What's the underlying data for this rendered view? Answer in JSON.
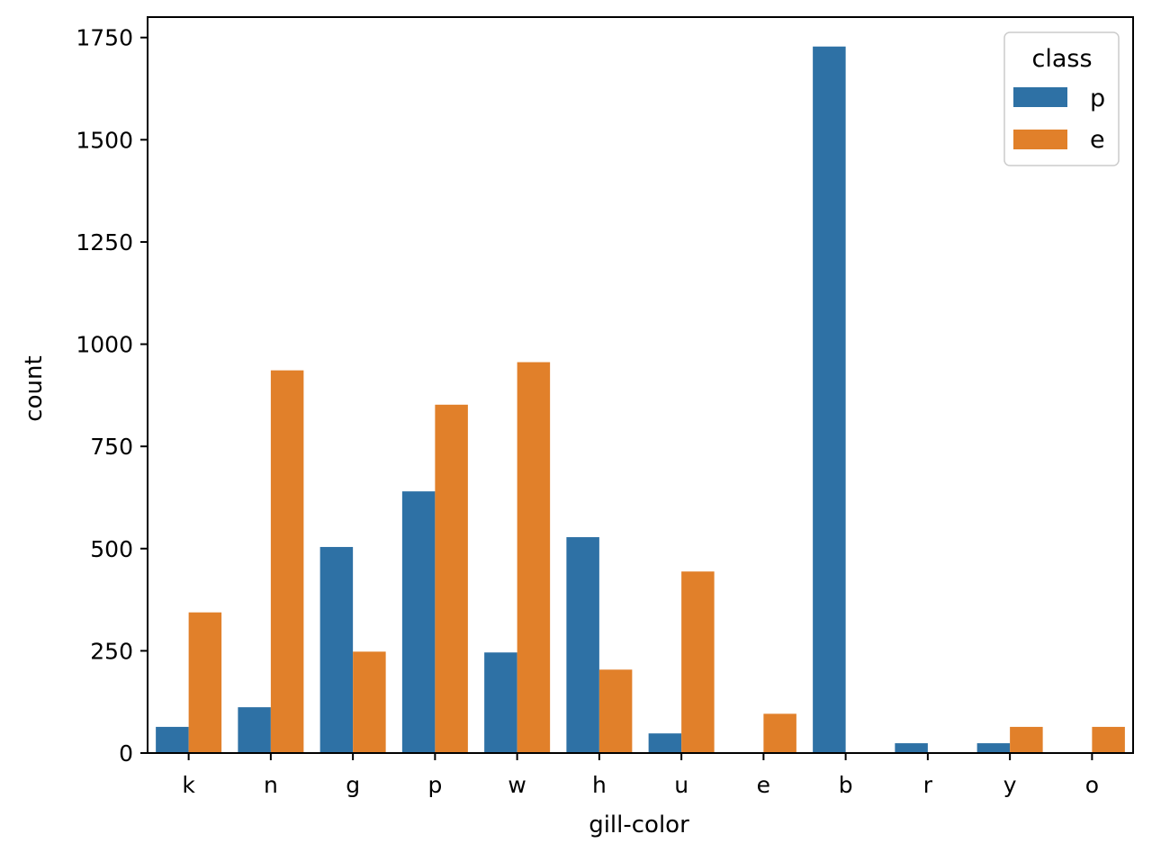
{
  "chart_data": {
    "type": "bar",
    "categories": [
      "k",
      "n",
      "g",
      "p",
      "w",
      "h",
      "u",
      "e",
      "b",
      "r",
      "y",
      "o"
    ],
    "series": [
      {
        "name": "p",
        "color": "#2e71a5",
        "values": [
          64,
          112,
          504,
          640,
          246,
          528,
          48,
          0,
          1728,
          24,
          24,
          0
        ]
      },
      {
        "name": "e",
        "color": "#e1802a",
        "values": [
          344,
          936,
          248,
          852,
          956,
          204,
          444,
          96,
          0,
          0,
          64,
          64
        ]
      }
    ],
    "title": "",
    "xlabel": "gill-color",
    "ylabel": "count",
    "ylim": [
      0,
      1800
    ],
    "yticks": [
      0,
      250,
      500,
      750,
      1000,
      1250,
      1500,
      1750
    ],
    "grid": false,
    "legend": {
      "title": "class",
      "placement": "top-right"
    }
  }
}
